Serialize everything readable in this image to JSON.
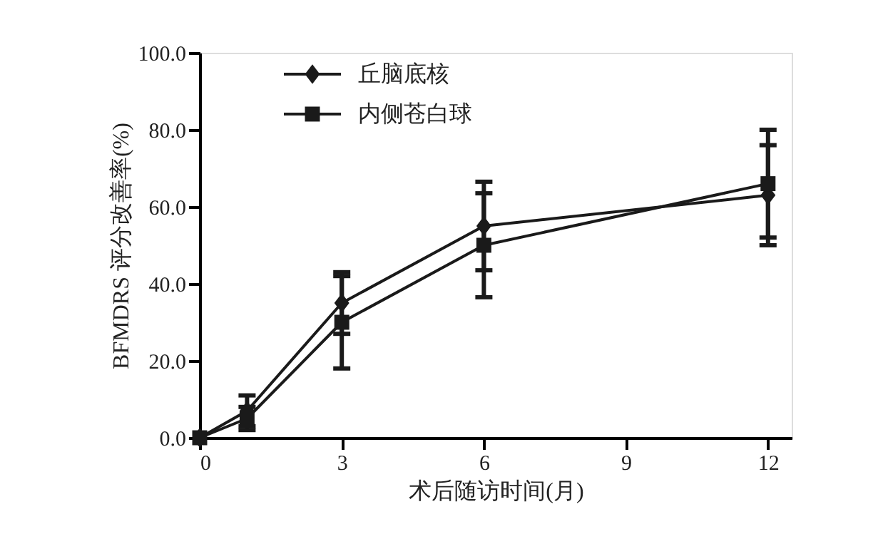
{
  "chart_data": {
    "type": "line",
    "xlabel": "术后随访时间(月)",
    "ylabel": "BFMDRS 评分改善率(%)",
    "x": [
      0,
      1,
      3,
      6,
      12
    ],
    "series": [
      {
        "name": "丘脑底核",
        "color": "#1a1a1a",
        "marker": "diamond",
        "values": [
          0,
          7,
          35,
          55,
          63
        ],
        "errors": [
          null,
          4,
          8,
          11.5,
          13
        ]
      },
      {
        "name": "内侧苍白球",
        "color": "#1a1a1a",
        "marker": "square",
        "values": [
          0,
          5,
          30,
          50,
          66
        ],
        "errors": [
          null,
          3,
          12,
          13.5,
          14
        ]
      }
    ],
    "xlim": [
      0,
      12.5
    ],
    "xticks": [
      0,
      3,
      6,
      9,
      12
    ],
    "ylim": [
      0,
      100
    ],
    "yticks": [
      {
        "value": 0,
        "label": "0.0"
      },
      {
        "value": 20,
        "label": "20.0"
      },
      {
        "value": 40,
        "label": "40.0"
      },
      {
        "value": 60,
        "label": "60.0"
      },
      {
        "value": 80,
        "label": "80.0"
      },
      {
        "value": 100,
        "label": "100.0"
      }
    ],
    "grid": false,
    "legend": "top left",
    "line_style": "solid"
  }
}
